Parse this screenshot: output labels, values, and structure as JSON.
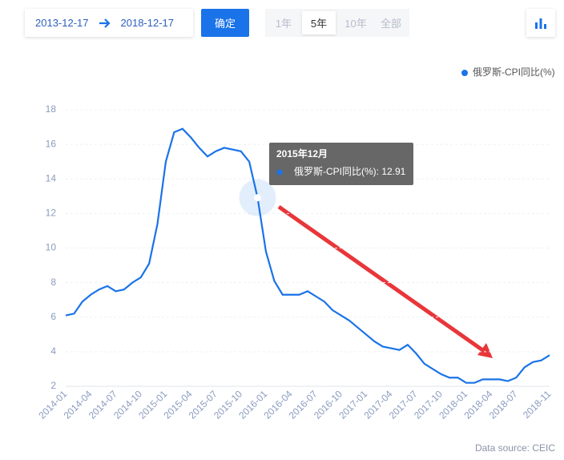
{
  "toolbar": {
    "start_date": "2013-12-17",
    "end_date": "2018-12-17",
    "confirm": "确定",
    "ranges": [
      "1年",
      "5年",
      "10年",
      "全部"
    ]
  },
  "chart_data": {
    "type": "line",
    "categories": [
      "2014-01",
      null,
      null,
      "2014-04",
      null,
      null,
      "2014-07",
      null,
      null,
      "2014-10",
      null,
      null,
      "2015-01",
      null,
      null,
      "2015-04",
      null,
      null,
      "2015-07",
      null,
      null,
      "2015-10",
      null,
      null,
      "2016-01",
      null,
      null,
      "2016-04",
      null,
      null,
      "2016-07",
      null,
      null,
      "2016-10",
      null,
      null,
      "2017-01",
      null,
      null,
      "2017-04",
      null,
      null,
      "2017-07",
      null,
      null,
      "2017-10",
      null,
      null,
      "2018-01",
      null,
      null,
      "2018-04",
      null,
      null,
      "2018-07",
      null,
      null,
      null,
      "2018-11"
    ],
    "series": [
      {
        "name": "俄罗斯-CPI同比(%)",
        "color": "#1a73e8",
        "values": [
          6.1,
          6.2,
          6.9,
          7.3,
          7.6,
          7.8,
          7.5,
          7.6,
          8.0,
          8.3,
          9.1,
          11.4,
          15.0,
          16.7,
          16.9,
          16.4,
          15.8,
          15.3,
          15.6,
          15.8,
          15.7,
          15.6,
          15.0,
          12.91,
          9.8,
          8.1,
          7.3,
          7.3,
          7.3,
          7.5,
          7.2,
          6.9,
          6.4,
          6.1,
          5.8,
          5.4,
          5.0,
          4.6,
          4.3,
          4.2,
          4.1,
          4.4,
          3.9,
          3.3,
          3.0,
          2.7,
          2.5,
          2.5,
          2.2,
          2.2,
          2.4,
          2.4,
          2.4,
          2.3,
          2.5,
          3.1,
          3.4,
          3.5,
          3.8
        ]
      }
    ],
    "ylim": [
      2,
      18
    ],
    "yticks": [
      2,
      4,
      6,
      8,
      10,
      12,
      14,
      16,
      18
    ],
    "grid": true,
    "legend": "top-right",
    "tooltip": {
      "index": 23,
      "title": "2015年12月",
      "text": "俄罗斯-CPI同比(%): 12.91"
    },
    "source": "Data source: CEIC"
  }
}
